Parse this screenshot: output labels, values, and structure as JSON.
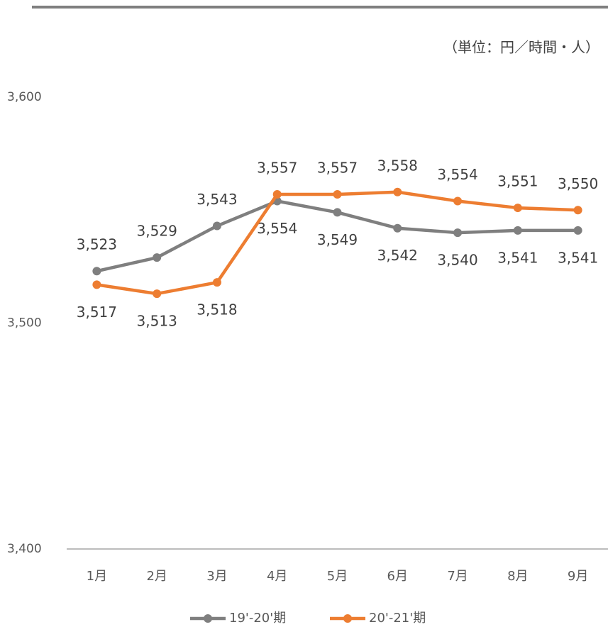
{
  "chart_data": {
    "type": "line",
    "annotation": "（単位：円／時間・人）",
    "categories": [
      "1月",
      "2月",
      "3月",
      "4月",
      "5月",
      "6月",
      "7月",
      "8月",
      "9月"
    ],
    "series": [
      {
        "name": "19'-20'期",
        "color": "#7f7f7f",
        "values": [
          3523,
          3529,
          3543,
          3554,
          3549,
          3542,
          3540,
          3541,
          3541
        ],
        "value_labels": [
          "3,523",
          "3,529",
          "3,543",
          "3,554",
          "3,549",
          "3,542",
          "3,540",
          "3,541",
          "3,541"
        ]
      },
      {
        "name": "20'-21'期",
        "color": "#ed7d31",
        "values": [
          3517,
          3513,
          3518,
          3557,
          3557,
          3558,
          3554,
          3551,
          3550
        ],
        "value_labels": [
          "3,517",
          "3,513",
          "3,518",
          "3,557",
          "3,557",
          "3,558",
          "3,554",
          "3,551",
          "3,550"
        ]
      }
    ],
    "ylim": [
      3400,
      3600
    ],
    "yticks": [
      {
        "value": 3400,
        "label": "3,400"
      },
      {
        "value": 3500,
        "label": "3,500"
      },
      {
        "value": 3600,
        "label": "3,600"
      }
    ],
    "grid": false,
    "legend": "bottom"
  }
}
